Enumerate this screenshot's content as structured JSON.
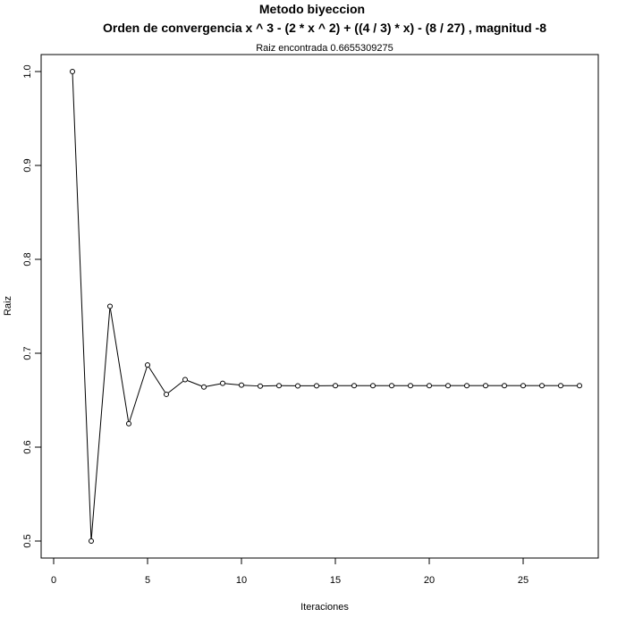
{
  "chart_data": {
    "type": "line",
    "title": "Metodo biyeccion",
    "subtitle": "Orden de convergencia x ^ 3 - (2 * x ^ 2) + ((4 / 3) * x) - (8 / 27) , magnitud -8",
    "annotation": "Raiz encontrada 0.6655309275",
    "xlabel": "Iteraciones",
    "ylabel": "Raiz",
    "xlim": [
      0,
      29
    ],
    "ylim": [
      0.48,
      1.03
    ],
    "xticks": [
      0,
      5,
      10,
      15,
      20,
      25
    ],
    "yticks": [
      0.5,
      0.6,
      0.7,
      0.8,
      0.9,
      1.0
    ],
    "ytick_labels": [
      "0.5",
      "0.6",
      "0.7",
      "0.8",
      "0.9",
      "1.0"
    ],
    "x": [
      1,
      2,
      3,
      4,
      5,
      6,
      7,
      8,
      9,
      10,
      11,
      12,
      13,
      14,
      15,
      16,
      17,
      18,
      19,
      20,
      21,
      22,
      23,
      24,
      25,
      26,
      27,
      28
    ],
    "values": [
      1.0,
      0.5,
      0.75,
      0.625,
      0.6875,
      0.65625,
      0.671875,
      0.6640625,
      0.66796875,
      0.666015625,
      0.6650390625,
      0.66552734375,
      0.665283203125,
      0.6654052734375,
      0.66546630859375,
      0.66549682617188,
      0.66551208496094,
      0.66552734375,
      0.6655,
      0.66553,
      0.66553,
      0.66553,
      0.66553,
      0.66553,
      0.66553,
      0.66553,
      0.66553,
      0.6655309275
    ],
    "grid": false,
    "line_color": "#000000"
  }
}
